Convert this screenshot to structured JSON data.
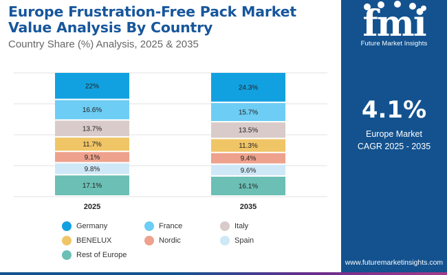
{
  "header": {
    "title": "Europe Frustration-Free Pack Market Value Analysis By Country",
    "subtitle": "Country Share (%) Analysis, 2025 & 2035"
  },
  "sidebar": {
    "logo_text": "Future Market Insights",
    "cagr_value": "4.1%",
    "cagr_label_line1": "Europe Market",
    "cagr_label_line2": "CAGR 2025 - 2035",
    "website": "www.futuremarketinsights.com",
    "bg_color": "#13528f"
  },
  "chart_data": {
    "type": "bar",
    "stacked": true,
    "orientation": "vertical",
    "categories": [
      "2025",
      "2035"
    ],
    "series": [
      {
        "name": "Germany",
        "color": "#12a1e0",
        "values": [
          22,
          24.3
        ],
        "labels": [
          "22%",
          "24.3%"
        ]
      },
      {
        "name": "France",
        "color": "#6dcdf4",
        "values": [
          16.6,
          15.7
        ],
        "labels": [
          "16.6%",
          "15.7%"
        ]
      },
      {
        "name": "Italy",
        "color": "#d9cbc9",
        "values": [
          13.7,
          13.5
        ],
        "labels": [
          "13.7%",
          "13.5%"
        ]
      },
      {
        "name": "BENELUX",
        "color": "#f0c566",
        "values": [
          11.7,
          11.3
        ],
        "labels": [
          "11.7%",
          "11.3%"
        ]
      },
      {
        "name": "Nordic",
        "color": "#eea18c",
        "values": [
          9.1,
          9.4
        ],
        "labels": [
          "9.1%",
          "9.4%"
        ]
      },
      {
        "name": "Spain",
        "color": "#cfe8f7",
        "values": [
          9.8,
          9.6
        ],
        "labels": [
          "9.8%",
          "9.6%"
        ]
      },
      {
        "name": "Rest of Europe",
        "color": "#6bbfb5",
        "values": [
          17.1,
          16.1
        ],
        "labels": [
          "17.1%",
          "16.1%"
        ]
      }
    ],
    "ylim": [
      0,
      100
    ],
    "grid": true,
    "legend_position": "bottom"
  }
}
